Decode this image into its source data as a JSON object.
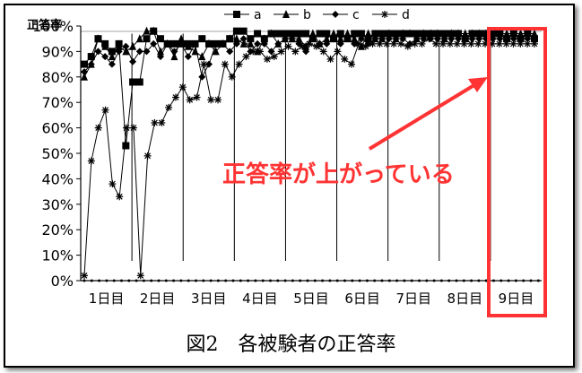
{
  "chart_data": {
    "type": "line",
    "ylabel": "正答率",
    "yticks": [
      "0%",
      "10%",
      "20%",
      "30%",
      "40%",
      "50%",
      "60%",
      "70%",
      "80%",
      "90%",
      "100%"
    ],
    "ylim": [
      0,
      100
    ],
    "days": [
      "1日目",
      "2日目",
      "3日目",
      "4日目",
      "5日目",
      "6日目",
      "7日目",
      "8日目",
      "9日目"
    ],
    "legend_position": "top-center",
    "series": [
      {
        "name": "a",
        "marker": "square",
        "values": [
          [
            85,
            88,
            95,
            93,
            90,
            93,
            53,
            78,
            78,
            95,
            98,
            95,
            93,
            93,
            93,
            93,
            93,
            95,
            93,
            93,
            93,
            95,
            98,
            98,
            95,
            97,
            95,
            97,
            97,
            97,
            97,
            97,
            97,
            95,
            97,
            97,
            95,
            97,
            95,
            97,
            97,
            95,
            97,
            97,
            97,
            97,
            97,
            97,
            97,
            97,
            97,
            97,
            97,
            97,
            97,
            95,
            97,
            97,
            97,
            97,
            97,
            95,
            97,
            95,
            97,
            95
          ]
        ]
      },
      {
        "name": "b",
        "marker": "triangle",
        "values": [
          [
            80,
            85,
            95,
            92,
            88,
            92,
            90,
            92,
            95,
            98,
            98,
            90,
            93,
            88,
            95,
            92,
            90,
            88,
            93,
            90,
            93,
            95,
            95,
            93,
            93,
            90,
            95,
            97,
            93,
            95,
            95,
            95,
            92,
            97,
            93,
            95,
            97,
            95,
            97,
            95,
            92,
            97,
            95,
            95,
            97,
            95,
            97,
            97,
            95,
            97,
            97,
            97,
            95,
            97,
            97,
            97,
            97,
            97,
            97,
            97,
            97,
            97,
            97,
            97,
            97,
            97
          ]
        ]
      },
      {
        "name": "c",
        "marker": "diamond",
        "values": [
          [
            82,
            85,
            90,
            88,
            85,
            90,
            92,
            86,
            90,
            90,
            93,
            88,
            93,
            90,
            93,
            88,
            93,
            80,
            85,
            93,
            93,
            90,
            93,
            95,
            90,
            93,
            93,
            90,
            93,
            95,
            95,
            93,
            90,
            95,
            93,
            93,
            95,
            93,
            95,
            93,
            95,
            93,
            95,
            95,
            95,
            95,
            95,
            93,
            95,
            95,
            95,
            95,
            95,
            95,
            95,
            95,
            95,
            95,
            95,
            95,
            95,
            95,
            95,
            95,
            95,
            95
          ]
        ]
      },
      {
        "name": "d",
        "marker": "star",
        "values": [
          [
            2,
            47,
            60,
            67,
            38,
            33,
            60,
            60,
            2,
            49,
            62,
            62,
            68,
            72,
            76,
            71,
            72,
            85,
            71,
            71,
            85,
            80,
            85,
            88,
            90,
            90,
            87,
            88,
            90,
            92,
            90,
            92,
            93,
            92,
            90,
            87,
            90,
            87,
            85,
            93,
            92,
            93,
            93,
            93,
            93,
            93,
            92,
            93,
            93,
            95,
            93,
            93,
            93,
            93,
            93,
            93,
            93,
            93,
            93,
            93,
            93,
            93,
            93,
            93,
            93
          ]
        ]
      }
    ]
  },
  "annotation": {
    "text": "正答率が上がっている",
    "highlight_day": "9日目",
    "color": "#ff3333"
  },
  "caption": "図2　各被験者の正答率"
}
